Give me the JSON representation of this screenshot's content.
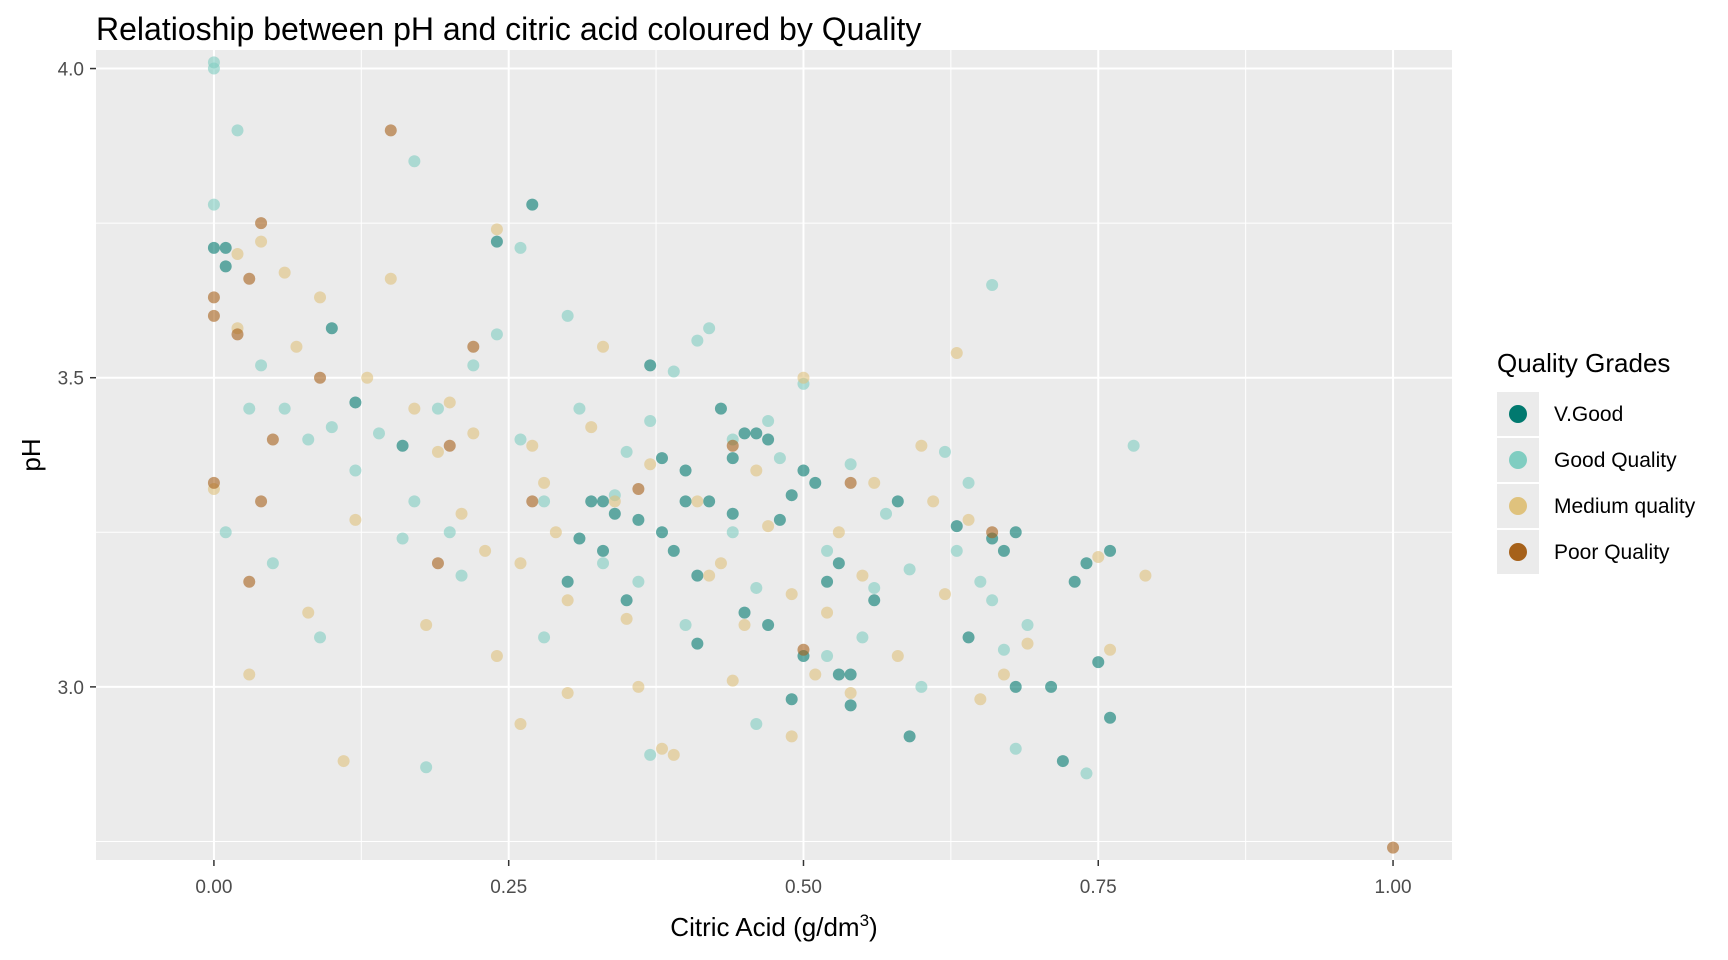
{
  "chart_data": {
    "type": "scatter",
    "title": "Relatioship between pH and citric acid coloured by Quality",
    "xlabel": "Citric Acid (g/dm³)",
    "xlabel_parts": {
      "base": "Citric Acid (g/dm",
      "sup": "3",
      "close": ")"
    },
    "ylabel": "pH",
    "xlim": [
      -0.1,
      1.05
    ],
    "ylim": [
      2.72,
      4.03
    ],
    "x_ticks": [
      0.0,
      0.25,
      0.5,
      0.75,
      1.0
    ],
    "x_tick_labels": [
      "0.00",
      "0.25",
      "0.50",
      "0.75",
      "1.00"
    ],
    "y_ticks": [
      3.0,
      3.5,
      4.0
    ],
    "y_tick_labels": [
      "3.0",
      "3.5",
      "4.0"
    ],
    "grid": true,
    "legend": {
      "title": "Quality Grades",
      "position": "right",
      "entries": [
        "V.Good",
        "Good Quality",
        "Medium quality",
        "Poor Quality"
      ]
    },
    "series": [
      {
        "name": "V.Good",
        "color": "#01796f",
        "points": [
          [
            0.0,
            3.71
          ],
          [
            0.01,
            3.71
          ],
          [
            0.01,
            3.68
          ],
          [
            0.1,
            3.58
          ],
          [
            0.12,
            3.46
          ],
          [
            0.16,
            3.39
          ],
          [
            0.27,
            3.78
          ],
          [
            0.24,
            3.72
          ],
          [
            0.32,
            3.3
          ],
          [
            0.33,
            3.3
          ],
          [
            0.34,
            3.28
          ],
          [
            0.36,
            3.27
          ],
          [
            0.37,
            3.52
          ],
          [
            0.38,
            3.25
          ],
          [
            0.39,
            3.22
          ],
          [
            0.4,
            3.35
          ],
          [
            0.41,
            3.18
          ],
          [
            0.42,
            3.3
          ],
          [
            0.43,
            3.45
          ],
          [
            0.44,
            3.37
          ],
          [
            0.45,
            3.41
          ],
          [
            0.46,
            3.41
          ],
          [
            0.47,
            3.4
          ],
          [
            0.48,
            3.27
          ],
          [
            0.49,
            3.31
          ],
          [
            0.5,
            3.35
          ],
          [
            0.51,
            3.33
          ],
          [
            0.52,
            3.17
          ],
          [
            0.53,
            3.2
          ],
          [
            0.54,
            3.02
          ],
          [
            0.53,
            3.02
          ],
          [
            0.54,
            2.97
          ],
          [
            0.56,
            3.14
          ],
          [
            0.58,
            3.3
          ],
          [
            0.59,
            2.92
          ],
          [
            0.63,
            3.26
          ],
          [
            0.64,
            3.08
          ],
          [
            0.66,
            3.24
          ],
          [
            0.67,
            3.22
          ],
          [
            0.68,
            3.0
          ],
          [
            0.68,
            3.25
          ],
          [
            0.71,
            3.0
          ],
          [
            0.72,
            2.88
          ],
          [
            0.73,
            3.17
          ],
          [
            0.74,
            3.2
          ],
          [
            0.75,
            3.04
          ],
          [
            0.76,
            3.22
          ],
          [
            0.76,
            2.95
          ],
          [
            0.49,
            2.98
          ],
          [
            0.35,
            3.14
          ],
          [
            0.3,
            3.17
          ],
          [
            0.4,
            3.3
          ],
          [
            0.45,
            3.12
          ],
          [
            0.44,
            3.28
          ],
          [
            0.38,
            3.37
          ],
          [
            0.47,
            3.1
          ],
          [
            0.33,
            3.22
          ],
          [
            0.5,
            3.05
          ],
          [
            0.41,
            3.07
          ],
          [
            0.31,
            3.24
          ]
        ]
      },
      {
        "name": "Good Quality",
        "color": "#80cdc1",
        "points": [
          [
            0.0,
            4.0
          ],
          [
            0.0,
            4.01
          ],
          [
            0.02,
            3.9
          ],
          [
            0.0,
            3.78
          ],
          [
            0.17,
            3.85
          ],
          [
            0.26,
            3.71
          ],
          [
            0.66,
            3.65
          ],
          [
            0.78,
            3.39
          ],
          [
            0.18,
            2.87
          ],
          [
            0.37,
            2.89
          ],
          [
            0.74,
            2.86
          ],
          [
            0.68,
            2.9
          ],
          [
            0.04,
            3.52
          ],
          [
            0.06,
            3.45
          ],
          [
            0.08,
            3.4
          ],
          [
            0.1,
            3.42
          ],
          [
            0.12,
            3.35
          ],
          [
            0.14,
            3.41
          ],
          [
            0.17,
            3.3
          ],
          [
            0.19,
            3.45
          ],
          [
            0.2,
            3.25
          ],
          [
            0.22,
            3.52
          ],
          [
            0.24,
            3.57
          ],
          [
            0.26,
            3.4
          ],
          [
            0.28,
            3.3
          ],
          [
            0.3,
            3.6
          ],
          [
            0.31,
            3.45
          ],
          [
            0.33,
            3.2
          ],
          [
            0.35,
            3.38
          ],
          [
            0.37,
            3.43
          ],
          [
            0.39,
            3.51
          ],
          [
            0.41,
            3.56
          ],
          [
            0.42,
            3.58
          ],
          [
            0.44,
            3.25
          ],
          [
            0.46,
            3.16
          ],
          [
            0.47,
            3.43
          ],
          [
            0.48,
            3.37
          ],
          [
            0.5,
            3.49
          ],
          [
            0.52,
            3.22
          ],
          [
            0.54,
            3.36
          ],
          [
            0.55,
            3.08
          ],
          [
            0.57,
            3.28
          ],
          [
            0.59,
            3.19
          ],
          [
            0.62,
            3.38
          ],
          [
            0.63,
            3.22
          ],
          [
            0.64,
            3.33
          ],
          [
            0.65,
            3.17
          ],
          [
            0.66,
            3.14
          ],
          [
            0.67,
            3.06
          ],
          [
            0.69,
            3.1
          ],
          [
            0.46,
            2.94
          ],
          [
            0.4,
            3.1
          ],
          [
            0.34,
            3.31
          ],
          [
            0.28,
            3.08
          ],
          [
            0.21,
            3.18
          ],
          [
            0.16,
            3.24
          ],
          [
            0.09,
            3.08
          ],
          [
            0.05,
            3.2
          ],
          [
            0.01,
            3.25
          ],
          [
            0.03,
            3.45
          ],
          [
            0.52,
            3.05
          ],
          [
            0.56,
            3.16
          ],
          [
            0.6,
            3.0
          ],
          [
            0.44,
            3.4
          ],
          [
            0.36,
            3.17
          ]
        ]
      },
      {
        "name": "Medium quality",
        "color": "#dfc27d",
        "points": [
          [
            0.0,
            3.32
          ],
          [
            0.02,
            3.7
          ],
          [
            0.04,
            3.72
          ],
          [
            0.06,
            3.67
          ],
          [
            0.07,
            3.55
          ],
          [
            0.09,
            3.63
          ],
          [
            0.11,
            2.88
          ],
          [
            0.15,
            3.66
          ],
          [
            0.17,
            3.45
          ],
          [
            0.19,
            3.38
          ],
          [
            0.21,
            3.28
          ],
          [
            0.22,
            3.41
          ],
          [
            0.24,
            3.74
          ],
          [
            0.24,
            3.05
          ],
          [
            0.26,
            3.2
          ],
          [
            0.26,
            2.94
          ],
          [
            0.28,
            3.33
          ],
          [
            0.3,
            3.14
          ],
          [
            0.3,
            2.99
          ],
          [
            0.32,
            3.42
          ],
          [
            0.34,
            3.3
          ],
          [
            0.36,
            3.0
          ],
          [
            0.38,
            2.9
          ],
          [
            0.39,
            2.89
          ],
          [
            0.41,
            3.3
          ],
          [
            0.43,
            3.2
          ],
          [
            0.45,
            3.1
          ],
          [
            0.47,
            3.26
          ],
          [
            0.49,
            3.15
          ],
          [
            0.49,
            2.92
          ],
          [
            0.5,
            3.5
          ],
          [
            0.52,
            3.12
          ],
          [
            0.54,
            2.99
          ],
          [
            0.56,
            3.33
          ],
          [
            0.58,
            3.05
          ],
          [
            0.6,
            3.39
          ],
          [
            0.62,
            3.15
          ],
          [
            0.63,
            3.54
          ],
          [
            0.64,
            3.27
          ],
          [
            0.65,
            2.98
          ],
          [
            0.69,
            3.07
          ],
          [
            0.75,
            3.21
          ],
          [
            0.76,
            3.06
          ],
          [
            0.79,
            3.18
          ],
          [
            0.03,
            3.02
          ],
          [
            0.08,
            3.12
          ],
          [
            0.13,
            3.5
          ],
          [
            0.18,
            3.1
          ],
          [
            0.23,
            3.22
          ],
          [
            0.27,
            3.39
          ],
          [
            0.33,
            3.55
          ],
          [
            0.37,
            3.36
          ],
          [
            0.42,
            3.18
          ],
          [
            0.46,
            3.35
          ],
          [
            0.51,
            3.02
          ],
          [
            0.55,
            3.18
          ],
          [
            0.61,
            3.3
          ],
          [
            0.67,
            3.02
          ],
          [
            0.02,
            3.58
          ],
          [
            0.12,
            3.27
          ],
          [
            0.2,
            3.46
          ],
          [
            0.29,
            3.25
          ],
          [
            0.35,
            3.11
          ],
          [
            0.44,
            3.01
          ],
          [
            0.53,
            3.25
          ]
        ]
      },
      {
        "name": "Poor Quality",
        "color": "#a6611a",
        "points": [
          [
            1.0,
            2.74
          ],
          [
            0.15,
            3.9
          ],
          [
            0.04,
            3.75
          ],
          [
            0.0,
            3.63
          ],
          [
            0.0,
            3.6
          ],
          [
            0.03,
            3.66
          ],
          [
            0.02,
            3.57
          ],
          [
            0.05,
            3.4
          ],
          [
            0.04,
            3.3
          ],
          [
            0.0,
            3.33
          ],
          [
            0.09,
            3.5
          ],
          [
            0.2,
            3.39
          ],
          [
            0.22,
            3.55
          ],
          [
            0.27,
            3.3
          ],
          [
            0.36,
            3.32
          ],
          [
            0.44,
            3.39
          ],
          [
            0.5,
            3.06
          ],
          [
            0.54,
            3.33
          ],
          [
            0.66,
            3.25
          ],
          [
            0.19,
            3.2
          ],
          [
            0.03,
            3.17
          ]
        ]
      }
    ]
  }
}
